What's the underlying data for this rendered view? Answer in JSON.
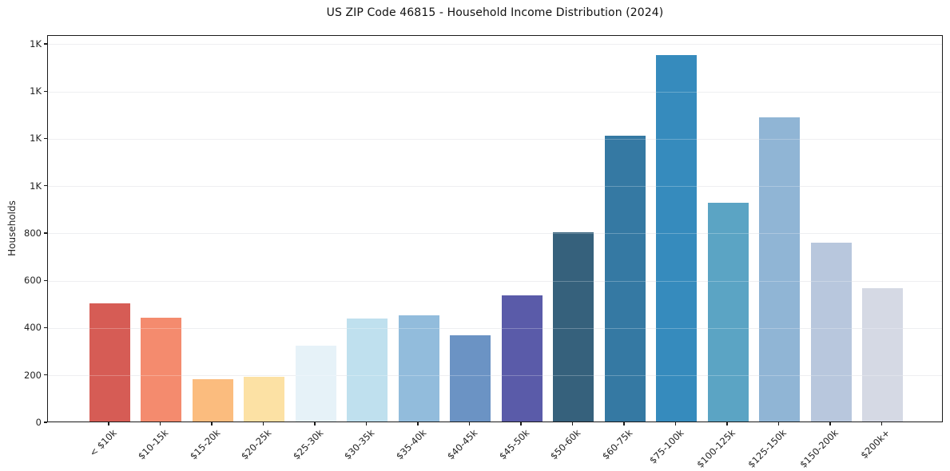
{
  "chart_data": {
    "type": "bar",
    "title": "US ZIP Code 46815 - Household Income Distribution (2024)",
    "xlabel": "",
    "ylabel": "Households",
    "categories": [
      "< $10k",
      "$10-15k",
      "$15-20k",
      "$20-25k",
      "$25-30k",
      "$30-35k",
      "$35-40k",
      "$40-45k",
      "$45-50k",
      "$50-60k",
      "$60-75k",
      "$75-100k",
      "$100-125k",
      "$125-150k",
      "$150-200k",
      "$200k+"
    ],
    "values": [
      500,
      440,
      180,
      190,
      320,
      435,
      450,
      365,
      535,
      800,
      1210,
      1550,
      925,
      1285,
      755,
      565
    ],
    "bar_colors": [
      "#d65c55",
      "#f48b6e",
      "#fbbc7e",
      "#fce1a4",
      "#e6f2f8",
      "#bfe0ee",
      "#92bcdc",
      "#6b93c4",
      "#5a5ba9",
      "#36617c",
      "#3579a3",
      "#368bbd",
      "#5ba4c4",
      "#90b5d5",
      "#b8c7dd",
      "#d5d9e4"
    ],
    "ylim": [
      0,
      1637
    ],
    "yticks": [
      {
        "value": 0,
        "label": "0"
      },
      {
        "value": 200,
        "label": "200"
      },
      {
        "value": 400,
        "label": "400"
      },
      {
        "value": 600,
        "label": "600"
      },
      {
        "value": 800,
        "label": "800"
      },
      {
        "value": 1000,
        "label": "1K"
      },
      {
        "value": 1200,
        "label": "1K"
      },
      {
        "value": 1400,
        "label": "1K"
      },
      {
        "value": 1600,
        "label": "1K"
      }
    ],
    "grid": "horizontal gridlines only",
    "legend_position": "none",
    "x_tick_rotation_deg": 45
  },
  "colors": {
    "background": "#ffffff",
    "plot_border": "#1a1a1a",
    "gridline": "#e8eaed",
    "tick_text": "#222222",
    "title_text": "#111111"
  }
}
